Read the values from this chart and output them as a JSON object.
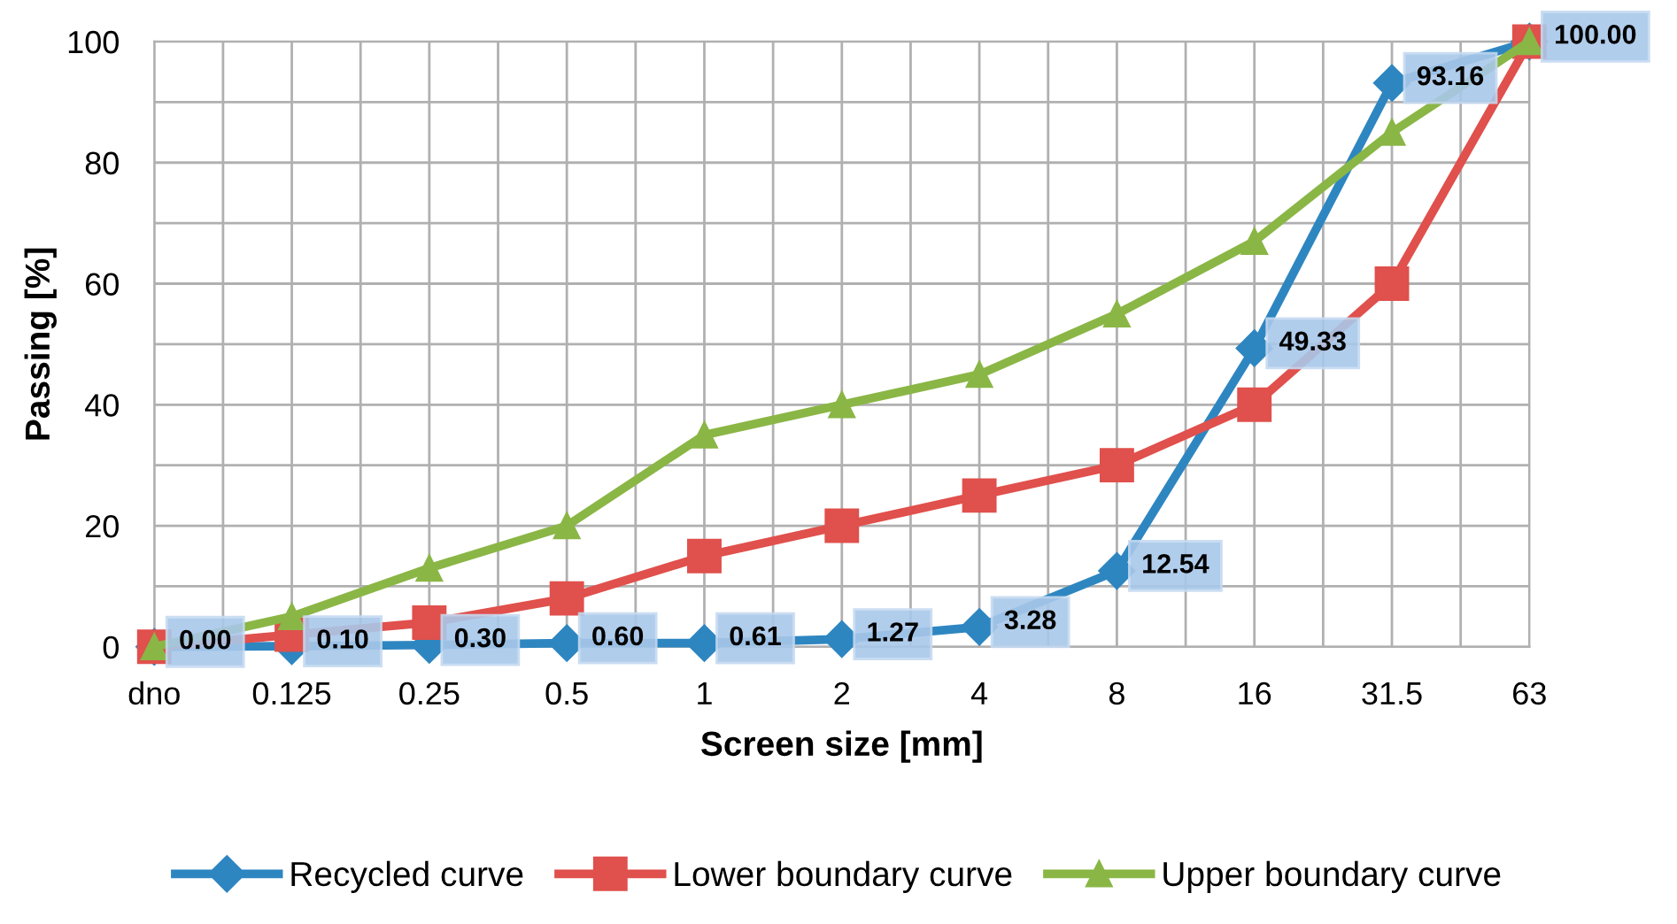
{
  "chart_data": {
    "type": "line",
    "xlabel": "Screen size [mm]",
    "ylabel": "Passing [%]",
    "categories": [
      "dno",
      "0.125",
      "0.25",
      "0.5",
      "1",
      "2",
      "4",
      "8",
      "16",
      "31.5",
      "63"
    ],
    "series": [
      {
        "name": "Recycled curve",
        "color": "#2e86c1",
        "marker": "diamond",
        "values": [
          0.0,
          0.1,
          0.3,
          0.6,
          0.61,
          1.27,
          3.28,
          12.54,
          49.33,
          93.16,
          100.0
        ],
        "value_labels": [
          "0.00",
          "0.10",
          "0.30",
          "0.60",
          "0.61",
          "1.27",
          "3.28",
          "12.54",
          "49.33",
          "93.16",
          "100.00"
        ]
      },
      {
        "name": "Lower boundary curve",
        "color": "#e0504c",
        "marker": "square",
        "values": [
          0,
          2,
          4,
          8,
          15,
          20,
          25,
          30,
          40,
          60,
          100
        ]
      },
      {
        "name": "Upper boundary curve",
        "color": "#8ab646",
        "marker": "triangle",
        "values": [
          0,
          5,
          13,
          20,
          35,
          40,
          45,
          55,
          67,
          85,
          100
        ]
      }
    ],
    "ylim": [
      0,
      100
    ],
    "yticks": [
      0,
      20,
      40,
      60,
      80,
      100
    ],
    "grid": true,
    "legend": "bottom"
  }
}
